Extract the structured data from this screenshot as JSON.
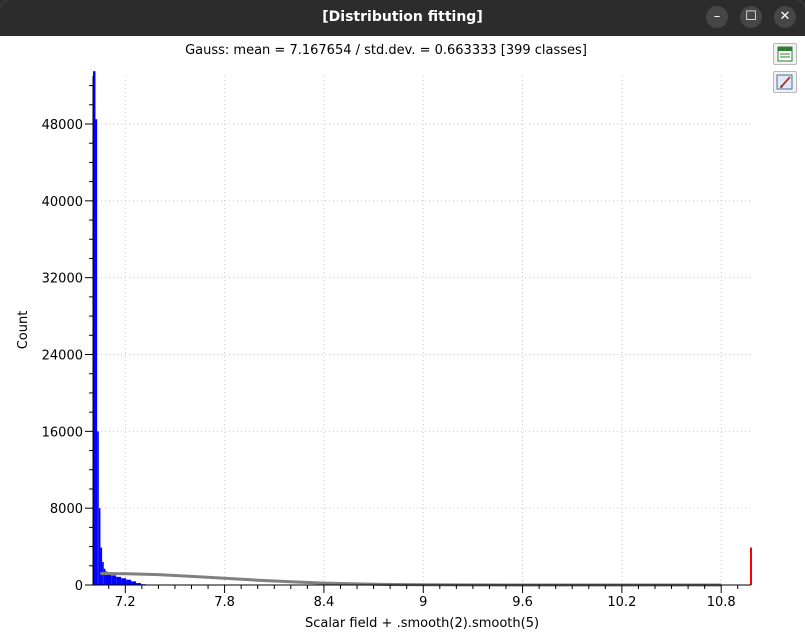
{
  "window": {
    "title": "[Distribution fitting]",
    "buttons": {
      "minimize": "–",
      "maximize": "☐",
      "close": "✕"
    }
  },
  "toolbar": {
    "export_icon": "export-csv-icon",
    "edit_icon": "edit-plot-icon"
  },
  "chart_data": {
    "type": "bar",
    "title": "Gauss: mean = 7.167654 / std.dev. = 0.663333 [399 classes]",
    "xlabel": "Scalar field + .smooth(2).smooth(5)",
    "ylabel": "Count",
    "xlim": [
      7.005,
      10.98
    ],
    "ylim": [
      0,
      53000
    ],
    "xticks": [
      "7.2",
      "7.8",
      "8.4",
      "9",
      "9.6",
      "10.2",
      "10.8"
    ],
    "xtick_values": [
      7.2,
      7.8,
      8.4,
      9.0,
      9.6,
      10.2,
      10.8
    ],
    "yticks": [
      "0",
      "8000",
      "16000",
      "24000",
      "32000",
      "40000",
      "48000"
    ],
    "ytick_values": [
      0,
      8000,
      16000,
      24000,
      32000,
      40000,
      48000
    ],
    "grid": true,
    "histogram": {
      "color": "#0000ff",
      "x": [
        7.015,
        7.025,
        7.035,
        7.045,
        7.055,
        7.065,
        7.075,
        7.085,
        7.1,
        7.13,
        7.16,
        7.19,
        7.22,
        7.25,
        7.28,
        7.31
      ],
      "values": [
        53500,
        48500,
        16000,
        8000,
        3900,
        2400,
        1700,
        1400,
        1200,
        1000,
        850,
        700,
        550,
        380,
        200,
        80
      ]
    },
    "gauss_curve": {
      "color": "#808080",
      "x": [
        7.05,
        7.2,
        7.4,
        7.6,
        7.8,
        8.0,
        8.2,
        8.4,
        8.6,
        8.8,
        9.0,
        9.2,
        9.6,
        10.0,
        10.8
      ],
      "y": [
        1200,
        1180,
        1080,
        900,
        700,
        500,
        330,
        200,
        110,
        55,
        25,
        10,
        2,
        0,
        0
      ]
    },
    "marker": {
      "color": "#ff0000",
      "x": 10.98,
      "value": 3900
    }
  }
}
